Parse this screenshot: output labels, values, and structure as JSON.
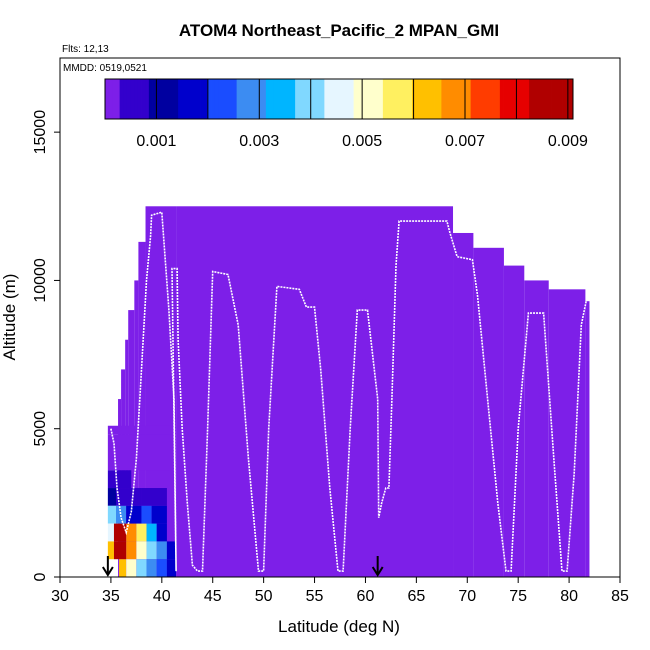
{
  "chart_data": {
    "type": "heatmap",
    "title": "ATOM4 Northeast_Pacific_2 MPAN_GMI",
    "flights_label": "Flts: 12,13",
    "mmdd_label": "MMDD: 0519,0521",
    "xlabel": "Latitude (deg N)",
    "ylabel": "Altitude (m)",
    "xlim": [
      30,
      85
    ],
    "ylim": [
      0,
      17500
    ],
    "x_ticks": [
      "30",
      "35",
      "40",
      "45",
      "50",
      "55",
      "60",
      "65",
      "70",
      "75",
      "80",
      "85"
    ],
    "y_ticks": [
      "0",
      "5000",
      "10000",
      "15000"
    ],
    "colorbar": {
      "min": 0.0,
      "max": 0.0091,
      "tick_labels": [
        "0.001",
        "0.003",
        "0.005",
        "0.007",
        "0.009"
      ],
      "tick_values": [
        0.001,
        0.003,
        0.005,
        0.007,
        0.009
      ],
      "colors": [
        "#7d1fe8",
        "#3300cc",
        "#0000a0",
        "#0000cc",
        "#1a4dff",
        "#3c8cf2",
        "#00b5ff",
        "#80d8ff",
        "#e6f6ff",
        "#ffffcc",
        "#fff060",
        "#ffc000",
        "#ff8c00",
        "#ff3c00",
        "#e60000",
        "#b00000"
      ]
    },
    "grid": false,
    "curtain_fill_color": "#7d1fe8",
    "curtain_columns": [
      {
        "x0": 41.4,
        "x1": 68.6,
        "top": 12500
      },
      {
        "x0": 68.6,
        "x1": 70.6,
        "top": 11600
      },
      {
        "x0": 70.6,
        "x1": 73.6,
        "top": 11100
      },
      {
        "x0": 73.6,
        "x1": 75.6,
        "top": 10500
      },
      {
        "x0": 75.6,
        "x1": 78.0,
        "top": 10000
      },
      {
        "x0": 78.0,
        "x1": 81.6,
        "top": 9700
      },
      {
        "x0": 81.6,
        "x1": 82.0,
        "top": 9300
      },
      {
        "x0": 38.4,
        "x1": 41.4,
        "top": 12500
      },
      {
        "x0": 37.7,
        "x1": 38.4,
        "top": 11300
      },
      {
        "x0": 37.3,
        "x1": 37.7,
        "top": 10000
      },
      {
        "x0": 36.7,
        "x1": 37.3,
        "top": 9000
      },
      {
        "x0": 36.4,
        "x1": 36.7,
        "top": 8000
      },
      {
        "x0": 36.0,
        "x1": 36.4,
        "top": 7000
      },
      {
        "x0": 35.7,
        "x1": 36.0,
        "top": 6000
      }
    ],
    "low_blocks": [
      {
        "x0": 34.7,
        "x1": 41.4,
        "y0": 4800,
        "y1": 5100,
        "v": 0.0001
      },
      {
        "x0": 34.7,
        "x1": 41.4,
        "y0": 3600,
        "y1": 4800,
        "v": 0.0002
      },
      {
        "x0": 34.7,
        "x1": 35.5,
        "y0": 3000,
        "y1": 3600,
        "v": 0.0008
      },
      {
        "x0": 35.5,
        "x1": 37.0,
        "y0": 3000,
        "y1": 3600,
        "v": 0.0006
      },
      {
        "x0": 34.7,
        "x1": 35.5,
        "y0": 2400,
        "y1": 3000,
        "v": 0.0012
      },
      {
        "x0": 35.5,
        "x1": 38.0,
        "y0": 2400,
        "y1": 3000,
        "v": 0.0009
      },
      {
        "x0": 38.0,
        "x1": 40.5,
        "y0": 2400,
        "y1": 3000,
        "v": 0.0006
      },
      {
        "x0": 34.7,
        "x1": 35.5,
        "y0": 1800,
        "y1": 2400,
        "v": 0.004
      },
      {
        "x0": 35.5,
        "x1": 36.5,
        "y0": 1800,
        "y1": 2400,
        "v": 0.003
      },
      {
        "x0": 36.5,
        "x1": 38.0,
        "y0": 1800,
        "y1": 2400,
        "v": 0.0021
      },
      {
        "x0": 38.0,
        "x1": 39.0,
        "y0": 1800,
        "y1": 2400,
        "v": 0.0026
      },
      {
        "x0": 39.0,
        "x1": 40.5,
        "y0": 1800,
        "y1": 2400,
        "v": 0.0018
      },
      {
        "x0": 34.7,
        "x1": 35.3,
        "y0": 1200,
        "y1": 1800,
        "v": 0.0048
      },
      {
        "x0": 35.3,
        "x1": 36.5,
        "y0": 1200,
        "y1": 1800,
        "v": 0.0088
      },
      {
        "x0": 36.5,
        "x1": 37.5,
        "y0": 1200,
        "y1": 1800,
        "v": 0.0072
      },
      {
        "x0": 37.5,
        "x1": 38.5,
        "y0": 1200,
        "y1": 1800,
        "v": 0.0058
      },
      {
        "x0": 38.5,
        "x1": 39.5,
        "y0": 1200,
        "y1": 1800,
        "v": 0.0036
      },
      {
        "x0": 39.5,
        "x1": 40.5,
        "y0": 1200,
        "y1": 1800,
        "v": 0.0022
      },
      {
        "x0": 34.7,
        "x1": 35.3,
        "y0": 600,
        "y1": 1200,
        "v": 0.0068
      },
      {
        "x0": 35.3,
        "x1": 36.5,
        "y0": 600,
        "y1": 1200,
        "v": 0.0086
      },
      {
        "x0": 36.5,
        "x1": 37.5,
        "y0": 600,
        "y1": 1200,
        "v": 0.0072
      },
      {
        "x0": 37.5,
        "x1": 38.5,
        "y0": 600,
        "y1": 1200,
        "v": 0.0055
      },
      {
        "x0": 38.5,
        "x1": 39.5,
        "y0": 600,
        "y1": 1200,
        "v": 0.0042
      },
      {
        "x0": 39.5,
        "x1": 40.5,
        "y0": 600,
        "y1": 1200,
        "v": 0.003
      },
      {
        "x0": 40.5,
        "x1": 41.4,
        "y0": 600,
        "y1": 1200,
        "v": 0.002
      },
      {
        "x0": 35.8,
        "x1": 36.5,
        "y0": 0,
        "y1": 600,
        "v": 0.0066
      },
      {
        "x0": 36.5,
        "x1": 37.5,
        "y0": 0,
        "y1": 600,
        "v": 0.0052
      },
      {
        "x0": 37.5,
        "x1": 38.5,
        "y0": 0,
        "y1": 600,
        "v": 0.0044
      },
      {
        "x0": 38.5,
        "x1": 39.5,
        "y0": 0,
        "y1": 600,
        "v": 0.0034
      },
      {
        "x0": 39.5,
        "x1": 40.5,
        "y0": 0,
        "y1": 600,
        "v": 0.0026
      },
      {
        "x0": 40.5,
        "x1": 41.4,
        "y0": 0,
        "y1": 600,
        "v": 0.0018
      }
    ],
    "flight_track": [
      [
        35.0,
        5000
      ],
      [
        35.3,
        4500
      ],
      [
        35.6,
        3000
      ],
      [
        36.0,
        2000
      ],
      [
        36.5,
        1500
      ],
      [
        37.0,
        2200
      ],
      [
        37.5,
        4000
      ],
      [
        38.0,
        7000
      ],
      [
        38.5,
        10000
      ],
      [
        38.9,
        11500
      ],
      [
        39.0,
        12200
      ],
      [
        40.0,
        12300
      ],
      [
        40.7,
        9000
      ],
      [
        41.2,
        6000
      ],
      [
        41.4,
        200
      ],
      [
        41.0,
        10400
      ],
      [
        41.5,
        10400
      ],
      [
        41.6,
        8000
      ],
      [
        42.0,
        5000
      ],
      [
        42.5,
        2500
      ],
      [
        43.0,
        400
      ],
      [
        43.5,
        200
      ],
      [
        44.0,
        200
      ],
      [
        44.5,
        5000
      ],
      [
        45.0,
        10300
      ],
      [
        46.5,
        10200
      ],
      [
        47.5,
        8500
      ],
      [
        48.5,
        4000
      ],
      [
        49.5,
        200
      ],
      [
        50.0,
        200
      ],
      [
        50.5,
        5000
      ],
      [
        51.3,
        9800
      ],
      [
        53.5,
        9700
      ],
      [
        54.2,
        9100
      ],
      [
        55.0,
        9100
      ],
      [
        55.6,
        7000
      ],
      [
        56.5,
        3000
      ],
      [
        57.3,
        200
      ],
      [
        57.8,
        200
      ],
      [
        58.5,
        5000
      ],
      [
        59.2,
        9000
      ],
      [
        60.2,
        9000
      ],
      [
        61.2,
        6000
      ],
      [
        61.3,
        2000
      ],
      [
        61.6,
        2500
      ],
      [
        62.0,
        3000
      ],
      [
        62.3,
        3000
      ],
      [
        62.6,
        6000
      ],
      [
        63.0,
        10500
      ],
      [
        63.3,
        12000
      ],
      [
        68.0,
        12000
      ],
      [
        68.3,
        11600
      ],
      [
        69.0,
        10800
      ],
      [
        70.5,
        10700
      ],
      [
        71.0,
        9500
      ],
      [
        72.0,
        6000
      ],
      [
        73.0,
        2500
      ],
      [
        73.8,
        200
      ],
      [
        74.3,
        200
      ],
      [
        75.0,
        5000
      ],
      [
        76.0,
        8900
      ],
      [
        77.5,
        8900
      ],
      [
        78.5,
        4000
      ],
      [
        79.3,
        200
      ],
      [
        79.8,
        200
      ],
      [
        80.5,
        3500
      ],
      [
        81.2,
        8500
      ],
      [
        81.8,
        9500
      ],
      [
        82.0,
        9500
      ]
    ],
    "flight_ranges": [
      [
        39.0,
        41.4
      ]
    ],
    "markers": [
      {
        "x": 34.7,
        "label": ""
      },
      {
        "x": 61.2,
        "label": ""
      }
    ]
  }
}
